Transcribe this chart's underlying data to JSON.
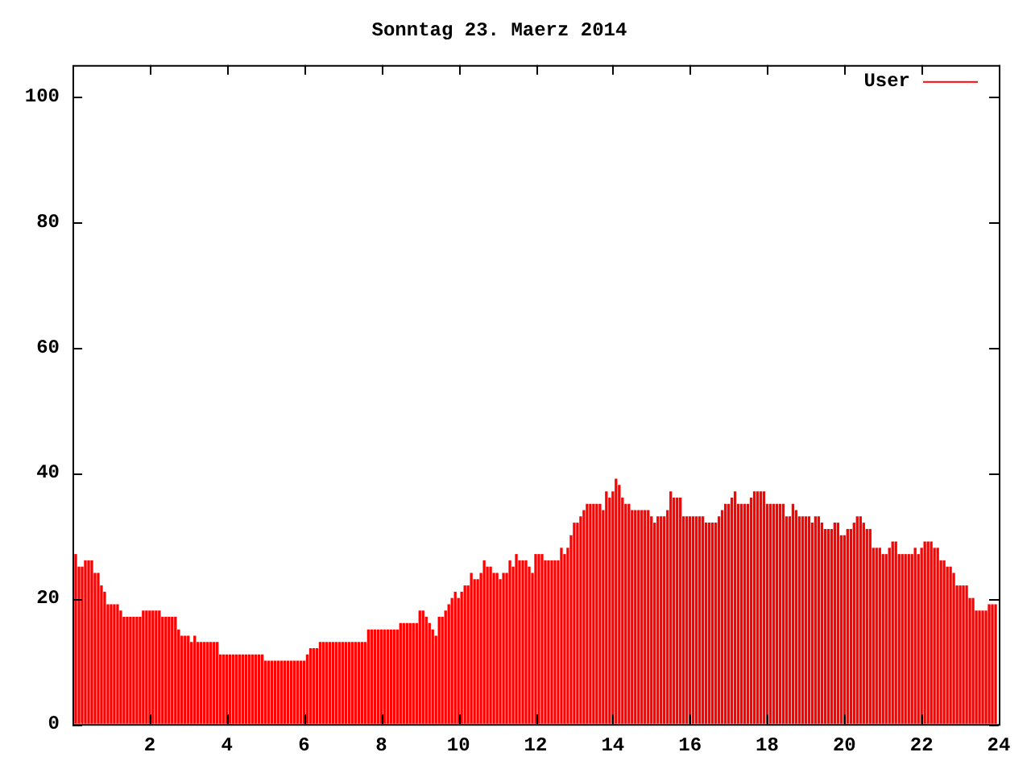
{
  "chart_data": {
    "type": "bar",
    "title": "Sonntag 23. Maerz 2014",
    "x": [
      0.083,
      0.167,
      0.25,
      0.333,
      0.417,
      0.5,
      0.583,
      0.667,
      0.75,
      0.833,
      0.917,
      1,
      1.083,
      1.167,
      1.25,
      1.333,
      1.417,
      1.5,
      1.583,
      1.667,
      1.75,
      1.833,
      1.917,
      2,
      2.083,
      2.167,
      2.25,
      2.333,
      2.417,
      2.5,
      2.583,
      2.667,
      2.75,
      2.833,
      2.917,
      3,
      3.083,
      3.167,
      3.25,
      3.333,
      3.417,
      3.5,
      3.583,
      3.667,
      3.75,
      3.833,
      3.917,
      4,
      4.083,
      4.167,
      4.25,
      4.333,
      4.417,
      4.5,
      4.583,
      4.667,
      4.75,
      4.833,
      4.917,
      5,
      5.083,
      5.167,
      5.25,
      5.333,
      5.417,
      5.5,
      5.583,
      5.667,
      5.75,
      5.833,
      5.917,
      6,
      6.083,
      6.167,
      6.25,
      6.333,
      6.417,
      6.5,
      6.583,
      6.667,
      6.75,
      6.833,
      6.917,
      7,
      7.083,
      7.167,
      7.25,
      7.333,
      7.417,
      7.5,
      7.583,
      7.667,
      7.75,
      7.833,
      7.917,
      8,
      8.083,
      8.167,
      8.25,
      8.333,
      8.417,
      8.5,
      8.583,
      8.667,
      8.75,
      8.833,
      8.917,
      9,
      9.083,
      9.167,
      9.25,
      9.333,
      9.417,
      9.5,
      9.583,
      9.667,
      9.75,
      9.833,
      9.917,
      10,
      10.083,
      10.167,
      10.25,
      10.333,
      10.417,
      10.5,
      10.583,
      10.667,
      10.75,
      10.833,
      10.917,
      11,
      11.083,
      11.167,
      11.25,
      11.333,
      11.417,
      11.5,
      11.583,
      11.667,
      11.75,
      11.833,
      11.917,
      12,
      12.083,
      12.167,
      12.25,
      12.333,
      12.417,
      12.5,
      12.583,
      12.667,
      12.75,
      12.833,
      12.917,
      13,
      13.083,
      13.167,
      13.25,
      13.333,
      13.417,
      13.5,
      13.583,
      13.667,
      13.75,
      13.833,
      13.917,
      14,
      14.083,
      14.167,
      14.25,
      14.333,
      14.417,
      14.5,
      14.583,
      14.667,
      14.75,
      14.833,
      14.917,
      15,
      15.083,
      15.167,
      15.25,
      15.333,
      15.417,
      15.5,
      15.583,
      15.667,
      15.75,
      15.833,
      15.917,
      16,
      16.083,
      16.167,
      16.25,
      16.333,
      16.417,
      16.5,
      16.583,
      16.667,
      16.75,
      16.833,
      16.917,
      17,
      17.083,
      17.167,
      17.25,
      17.333,
      17.417,
      17.5,
      17.583,
      17.667,
      17.75,
      17.833,
      17.917,
      18,
      18.083,
      18.167,
      18.25,
      18.333,
      18.417,
      18.5,
      18.583,
      18.667,
      18.75,
      18.833,
      18.917,
      19,
      19.083,
      19.167,
      19.25,
      19.333,
      19.417,
      19.5,
      19.583,
      19.667,
      19.75,
      19.833,
      19.917,
      20,
      20.083,
      20.167,
      20.25,
      20.333,
      20.417,
      20.5,
      20.583,
      20.667,
      20.75,
      20.833,
      20.917,
      21,
      21.083,
      21.167,
      21.25,
      21.333,
      21.417,
      21.5,
      21.583,
      21.667,
      21.75,
      21.833,
      21.917,
      22,
      22.083,
      22.167,
      22.25,
      22.333,
      22.417,
      22.5,
      22.583,
      22.667,
      22.75,
      22.833,
      22.917,
      23,
      23.083,
      23.167,
      23.25,
      23.333,
      23.417,
      23.5,
      23.583,
      23.667,
      23.75,
      23.833,
      23.917
    ],
    "series": [
      {
        "name": "User",
        "color": "#ff0000",
        "values": [
          27,
          25,
          25,
          26,
          26,
          26,
          24,
          24,
          22,
          21,
          19,
          19,
          19,
          19,
          18,
          17,
          17,
          17,
          17,
          17,
          17,
          18,
          18,
          18,
          18,
          18,
          18,
          17,
          17,
          17,
          17,
          17,
          15,
          14,
          14,
          14,
          13,
          14,
          13,
          13,
          13,
          13,
          13,
          13,
          13,
          11,
          11,
          11,
          11,
          11,
          11,
          11,
          11,
          11,
          11,
          11,
          11,
          11,
          11,
          10,
          10,
          10,
          10,
          10,
          10,
          10,
          10,
          10,
          10,
          10,
          10,
          10,
          11,
          12,
          12,
          12,
          13,
          13,
          13,
          13,
          13,
          13,
          13,
          13,
          13,
          13,
          13,
          13,
          13,
          13,
          13,
          15,
          15,
          15,
          15,
          15,
          15,
          15,
          15,
          15,
          15,
          16,
          16,
          16,
          16,
          16,
          16,
          18,
          18,
          17,
          16,
          15,
          14,
          17,
          17,
          18,
          19,
          20,
          21,
          20,
          21,
          22,
          22,
          24,
          23,
          23,
          24,
          26,
          25,
          25,
          24,
          24,
          23,
          24,
          24,
          26,
          25,
          27,
          26,
          26,
          26,
          25,
          24,
          27,
          27,
          27,
          26,
          26,
          26,
          26,
          26,
          28,
          27,
          28,
          30,
          32,
          32,
          33,
          34,
          35,
          35,
          35,
          35,
          35,
          34,
          37,
          36,
          37,
          39,
          38,
          36,
          35,
          35,
          34,
          34,
          34,
          34,
          34,
          34,
          33,
          32,
          33,
          33,
          33,
          34,
          37,
          36,
          36,
          36,
          33,
          33,
          33,
          33,
          33,
          33,
          33,
          32,
          32,
          32,
          32,
          33,
          34,
          35,
          35,
          36,
          37,
          35,
          35,
          35,
          35,
          36,
          37,
          37,
          37,
          37,
          35,
          35,
          35,
          35,
          35,
          35,
          33,
          33,
          35,
          34,
          33,
          33,
          33,
          33,
          32,
          33,
          33,
          32,
          31,
          31,
          31,
          32,
          32,
          30,
          30,
          31,
          31,
          32,
          33,
          33,
          32,
          31,
          31,
          28,
          28,
          28,
          27,
          27,
          28,
          29,
          29,
          27,
          27,
          27,
          27,
          27,
          28,
          27,
          28,
          29,
          29,
          29,
          28,
          28,
          26,
          26,
          25,
          25,
          24,
          22,
          22,
          22,
          22,
          20,
          20,
          18,
          18,
          18,
          18,
          19,
          19,
          19
        ]
      }
    ],
    "xlim": [
      0,
      24
    ],
    "xticks": [
      2,
      4,
      6,
      8,
      10,
      12,
      14,
      16,
      18,
      20,
      22,
      24
    ],
    "ylim": [
      0,
      105
    ],
    "yticks": [
      0,
      20,
      40,
      60,
      80,
      100
    ],
    "grid": false,
    "legend": "top right"
  }
}
